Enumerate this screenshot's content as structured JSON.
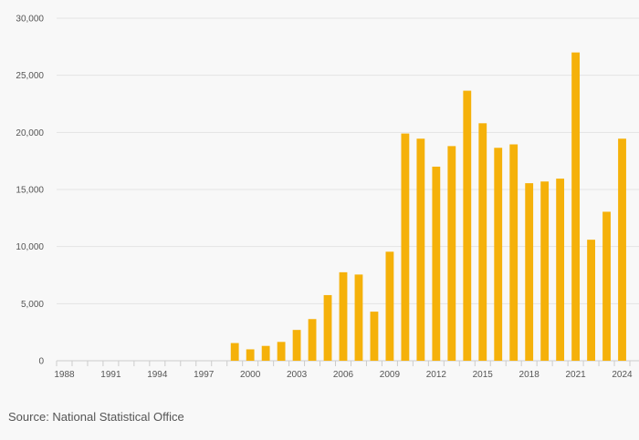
{
  "chart_data": {
    "type": "bar",
    "x": [
      1988,
      1989,
      1990,
      1991,
      1992,
      1993,
      1994,
      1995,
      1996,
      1997,
      1998,
      1999,
      2000,
      2001,
      2002,
      2003,
      2004,
      2005,
      2006,
      2007,
      2008,
      2009,
      2010,
      2011,
      2012,
      2013,
      2014,
      2015,
      2016,
      2017,
      2018,
      2019,
      2020,
      2021,
      2022,
      2023,
      2024
    ],
    "values": [
      0,
      0,
      0,
      0,
      0,
      0,
      0,
      0,
      0,
      0,
      0,
      1550,
      1000,
      1300,
      1650,
      2700,
      3650,
      5750,
      7750,
      7550,
      4300,
      9550,
      19900,
      19450,
      17000,
      18800,
      23650,
      20800,
      18650,
      18950,
      15550,
      15700,
      15950,
      27000,
      10600,
      13050,
      19450
    ],
    "x_tick_labels": [
      "1988",
      "1991",
      "1994",
      "1997",
      "2000",
      "2003",
      "2006",
      "2009",
      "2012",
      "2015",
      "2018",
      "2021",
      "2024"
    ],
    "y_tick_labels": [
      "0",
      "5,000",
      "10,000",
      "15,000",
      "20,000",
      "25,000",
      "30,000"
    ],
    "y_ticks": [
      0,
      5000,
      10000,
      15000,
      20000,
      25000,
      30000
    ],
    "ylim": [
      0,
      30000
    ],
    "title": "",
    "xlabel": "",
    "ylabel": "",
    "grid": true,
    "bar_color": "#f5b10a"
  },
  "source": "Source: National Statistical Office"
}
